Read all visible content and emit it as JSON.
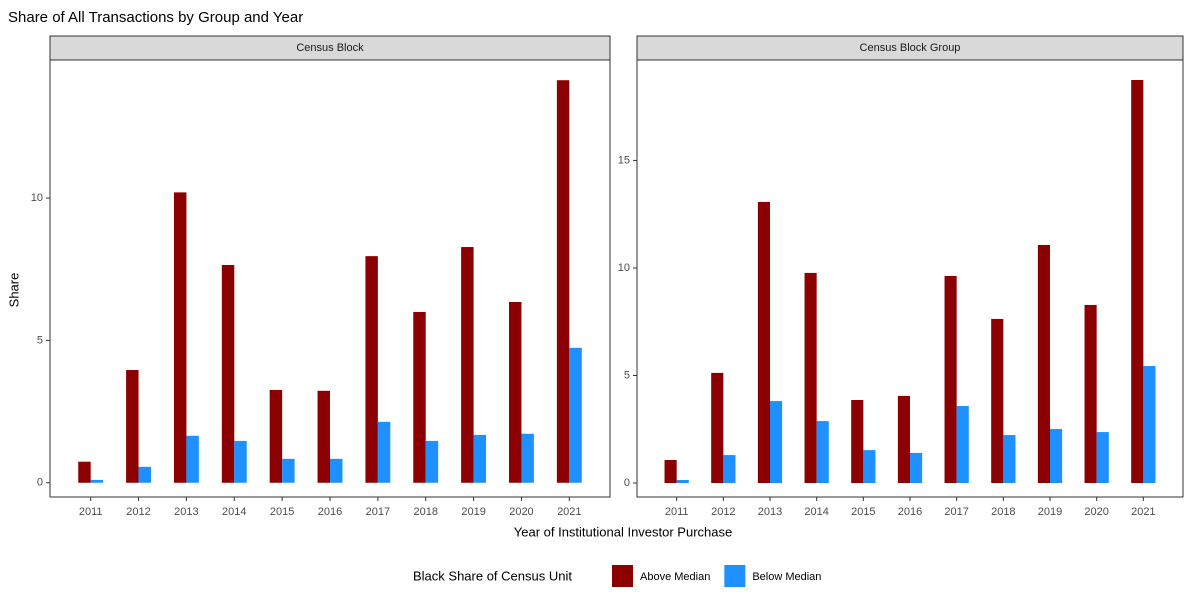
{
  "chart_data": {
    "type": "bar",
    "title": "Share of All Transactions by Group and Year",
    "xlabel": "Year of Institutional Investor Purchase",
    "ylabel": "Share",
    "legend_title": "Black Share of Census Unit",
    "categories": [
      "2011",
      "2012",
      "2013",
      "2014",
      "2015",
      "2016",
      "2017",
      "2018",
      "2019",
      "2020",
      "2021"
    ],
    "series": [
      {
        "name": "Above Median",
        "color": "#8b0000"
      },
      {
        "name": "Below Median",
        "color": "#1e90ff"
      }
    ],
    "panels": [
      {
        "title": "Census Block",
        "ylim": [
          -0.5,
          14.85
        ],
        "yticks": [
          0,
          5,
          10
        ],
        "values": [
          [
            0.74,
            3.96,
            10.2,
            7.65,
            3.26,
            3.23,
            7.96,
            6.0,
            8.28,
            6.35,
            14.14
          ],
          [
            0.1,
            0.56,
            1.65,
            1.47,
            0.84,
            0.84,
            2.14,
            1.47,
            1.68,
            1.72,
            4.74
          ]
        ]
      },
      {
        "title": "Census Block Group",
        "ylim": [
          -0.65,
          19.67
        ],
        "yticks": [
          0,
          5,
          10,
          15
        ],
        "values": [
          [
            1.07,
            5.12,
            13.07,
            9.77,
            3.86,
            4.05,
            9.63,
            7.63,
            11.07,
            8.28,
            18.74
          ],
          [
            0.14,
            1.3,
            3.81,
            2.88,
            1.53,
            1.4,
            3.58,
            2.23,
            2.51,
            2.37,
            5.44
          ]
        ]
      }
    ]
  }
}
